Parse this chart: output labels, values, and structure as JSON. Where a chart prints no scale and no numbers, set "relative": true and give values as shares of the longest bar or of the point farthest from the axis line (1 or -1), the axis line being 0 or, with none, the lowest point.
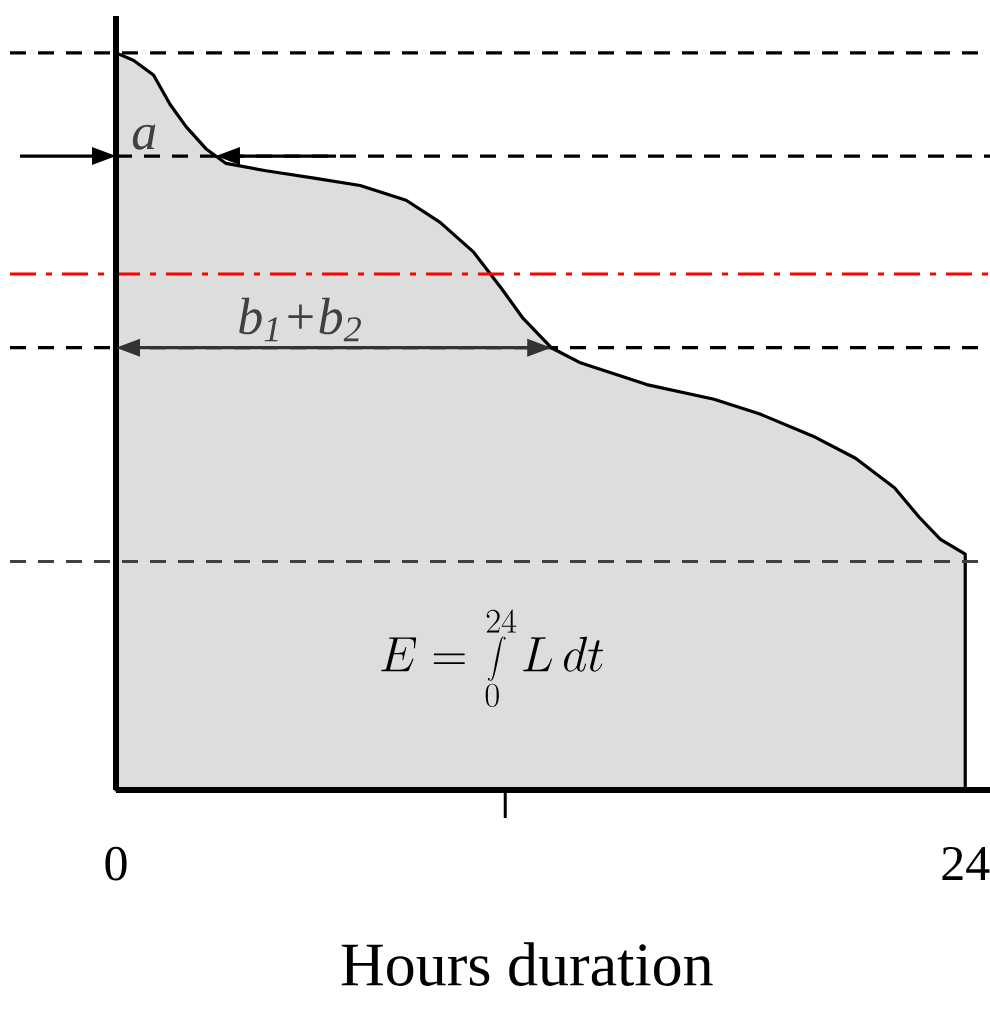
{
  "chart_data": {
    "type": "area",
    "xlabel": "Hours duration",
    "relative": true,
    "x": [
      0,
      0.49,
      1.06,
      1.53,
      1.98,
      2.54,
      3.11,
      4.24,
      5.6,
      6.9,
      8.2,
      9.16,
      10.1,
      10.9,
      11.5,
      12.3,
      13.1,
      15.0,
      16.9,
      18.2,
      19.7,
      20.9,
      22.0,
      22.7,
      23.3,
      24.0
    ],
    "values": [
      1.0,
      0.99,
      0.97,
      0.93,
      0.9,
      0.87,
      0.85,
      0.84,
      0.83,
      0.82,
      0.8,
      0.77,
      0.73,
      0.68,
      0.64,
      0.6,
      0.58,
      0.55,
      0.53,
      0.51,
      0.48,
      0.45,
      0.41,
      0.37,
      0.34,
      0.32
    ],
    "color": "#dddddd",
    "xlim": [
      0,
      24.7
    ],
    "xticks": [
      0,
      {
        "value": 11,
        "label": null
      },
      24
    ],
    "tick_labels": "x",
    "ref_lines": [
      {
        "axis": "y",
        "value": 1.0,
        "line_style": "dashed",
        "color": "#000000"
      },
      {
        "axis": "y",
        "value": 0.86,
        "line_style": "dashed",
        "color": "#000000"
      },
      {
        "axis": "y",
        "value": 0.7,
        "line_style": "dashdot",
        "color": "#ff0000"
      },
      {
        "axis": "y",
        "value": 0.6,
        "line_style": "dashed",
        "color": "#000000"
      },
      {
        "axis": "y",
        "value": 0.31,
        "line_style": "dashed",
        "color": "#404040"
      }
    ],
    "annotations": [
      {
        "text": "a",
        "x": 0.8,
        "y": 0.86
      },
      {
        "text": "b$_{1}$+b$_{2}$",
        "x": 5.2,
        "y": 0.6
      },
      "E=\\int\\limits_{0}^{24}L\\,dt"
    ]
  }
}
